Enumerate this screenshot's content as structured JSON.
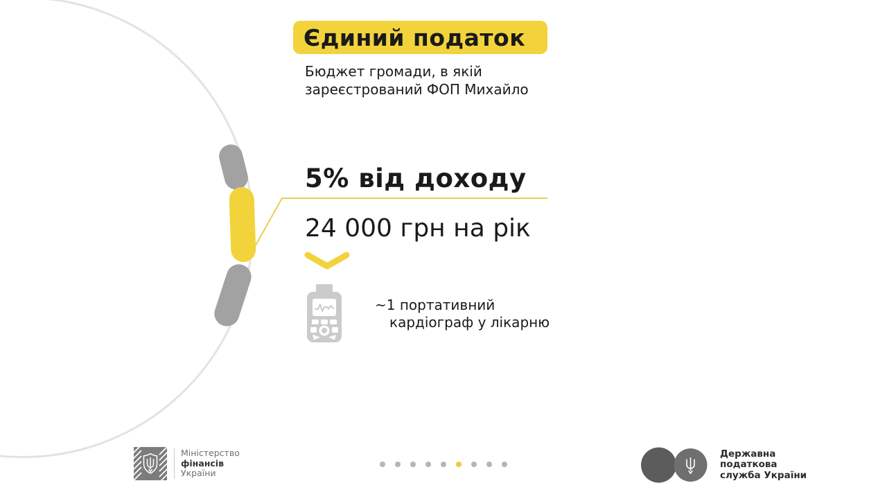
{
  "slide": {
    "title": "Єдиний податок",
    "subtitle": [
      "Бюджет громади, в якій",
      "зареєстрований ФОП Михайло"
    ],
    "rate": "5% від доходу",
    "amount": "24 000 грн на рік",
    "benefit": [
      "~1 портативний",
      "кардіограф у лікарню"
    ],
    "benefit_icon": "cardiograph-icon"
  },
  "ring": {
    "segments": [
      {
        "state": "inactive"
      },
      {
        "state": "active"
      },
      {
        "state": "inactive"
      }
    ]
  },
  "footer": {
    "ministry_logo": "ministry-of-finance-emblem",
    "ministry": [
      "Міністерство",
      "фінансів",
      "України"
    ],
    "tax_service_logo": "state-tax-service-emblem",
    "tax_service": [
      "Державна",
      "податкова",
      "служба України"
    ],
    "pagination": {
      "count": 9,
      "active": 5
    }
  },
  "colors": {
    "accent_yellow": "#F2D33C",
    "line_yellow": "#E9D04F",
    "pill_gray": "#A2A2A2",
    "circle_outline": "#E3E3E3",
    "icon_gray": "#CBCBCB",
    "logo_gray": "#7C7C7C",
    "dot_gray": "#B5B5B5",
    "dot_active": "#F0C93C",
    "text_dark": "#1A1A1A"
  }
}
